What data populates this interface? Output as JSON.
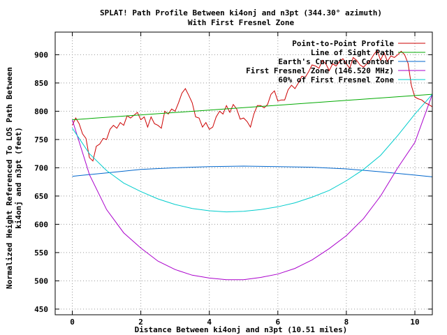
{
  "chart_data": {
    "type": "line",
    "title": "SPLAT! Path Profile Between ki4onj and n3pt (344.30° azimuth)",
    "subtitle": "With First Fresnel Zone",
    "xlabel": "Distance Between ki4onj and n3pt (10.51 miles)",
    "ylabel": [
      "Normalized Height Referenced To LOS Path Between",
      "ki4onj and n3pt (feet)"
    ],
    "xlim": [
      -0.5,
      10.51
    ],
    "ylim": [
      440,
      940
    ],
    "xticks": [
      0,
      2,
      4,
      6,
      8,
      10
    ],
    "yticks": [
      450,
      500,
      550,
      600,
      650,
      700,
      750,
      800,
      850,
      900
    ],
    "grid": true,
    "legend_position": "top-right",
    "series": [
      {
        "name": "Point-to-Point Profile",
        "color": "#cc0000",
        "x": [
          0,
          0.1,
          0.2,
          0.3,
          0.4,
          0.5,
          0.6,
          0.7,
          0.8,
          0.9,
          1.0,
          1.1,
          1.2,
          1.3,
          1.4,
          1.5,
          1.6,
          1.7,
          1.8,
          1.9,
          2.0,
          2.1,
          2.2,
          2.3,
          2.4,
          2.5,
          2.6,
          2.7,
          2.8,
          2.9,
          3.0,
          3.1,
          3.2,
          3.3,
          3.4,
          3.5,
          3.6,
          3.7,
          3.8,
          3.9,
          4.0,
          4.1,
          4.2,
          4.3,
          4.4,
          4.5,
          4.6,
          4.7,
          4.8,
          4.9,
          5.0,
          5.1,
          5.2,
          5.3,
          5.4,
          5.5,
          5.6,
          5.7,
          5.8,
          5.9,
          6.0,
          6.1,
          6.2,
          6.3,
          6.4,
          6.5,
          6.6,
          6.7,
          6.8,
          6.9,
          7.0,
          7.1,
          7.2,
          7.3,
          7.4,
          7.5,
          7.6,
          7.7,
          7.8,
          7.9,
          8.0,
          8.1,
          8.2,
          8.3,
          8.4,
          8.5,
          8.6,
          8.7,
          8.8,
          8.9,
          9.0,
          9.1,
          9.2,
          9.3,
          9.4,
          9.5,
          9.6,
          9.7,
          9.8,
          9.9,
          10.0,
          10.1,
          10.2,
          10.3,
          10.4,
          10.51
        ],
        "y": [
          775,
          788,
          778,
          760,
          752,
          718,
          712,
          738,
          742,
          752,
          750,
          768,
          775,
          770,
          780,
          775,
          792,
          788,
          793,
          798,
          785,
          790,
          772,
          790,
          778,
          775,
          770,
          800,
          795,
          804,
          800,
          815,
          832,
          840,
          828,
          815,
          790,
          788,
          772,
          780,
          768,
          772,
          790,
          800,
          795,
          810,
          798,
          812,
          804,
          786,
          788,
          782,
          772,
          795,
          810,
          810,
          806,
          812,
          830,
          836,
          818,
          820,
          820,
          838,
          846,
          840,
          850,
          862,
          860,
          870,
          882,
          880,
          876,
          890,
          884,
          872,
          884,
          880,
          888,
          893,
          884,
          876,
          895,
          890,
          882,
          878,
          884,
          890,
          900,
          908,
          890,
          904,
          888,
          898,
          895,
          900,
          906,
          900,
          885,
          845,
          825,
          822,
          820,
          815,
          812,
          808
        ]
      },
      {
        "name": "Line of Sight Path",
        "color": "#00aa00",
        "x": [
          0,
          10.51
        ],
        "y": [
          785,
          830
        ]
      },
      {
        "name": "Earth's Curvature Contour",
        "color": "#0066cc",
        "x": [
          0,
          1,
          2,
          3,
          4,
          5,
          6,
          7,
          8,
          9,
          10,
          10.51
        ],
        "y": [
          685,
          691,
          697,
          700,
          702,
          703,
          702,
          701,
          698,
          693,
          687,
          684
        ]
      },
      {
        "name": "First Fresnel Zone (146.520 MHz)",
        "color": "#aa00cc",
        "x": [
          0,
          0.5,
          1,
          1.5,
          2,
          2.5,
          3,
          3.5,
          4,
          4.5,
          5,
          5.5,
          6,
          6.5,
          7,
          7.5,
          8,
          8.5,
          9,
          9.5,
          10,
          10.51
        ],
        "y": [
          785,
          688,
          626,
          585,
          558,
          535,
          520,
          510,
          505,
          502,
          502,
          506,
          512,
          522,
          537,
          557,
          580,
          610,
          650,
          700,
          745,
          830
        ]
      },
      {
        "name": "60% of First Fresnel Zone",
        "color": "#00cccc",
        "x": [
          0,
          0.5,
          1,
          1.5,
          2,
          2.5,
          3,
          3.5,
          4,
          4.5,
          5,
          5.5,
          6,
          6.5,
          7,
          7.5,
          8,
          8.5,
          9,
          9.5,
          10,
          10.51
        ],
        "y": [
          770,
          725,
          695,
          673,
          658,
          645,
          635,
          628,
          624,
          622,
          623,
          626,
          631,
          638,
          648,
          660,
          677,
          697,
          722,
          757,
          795,
          830
        ]
      }
    ]
  }
}
